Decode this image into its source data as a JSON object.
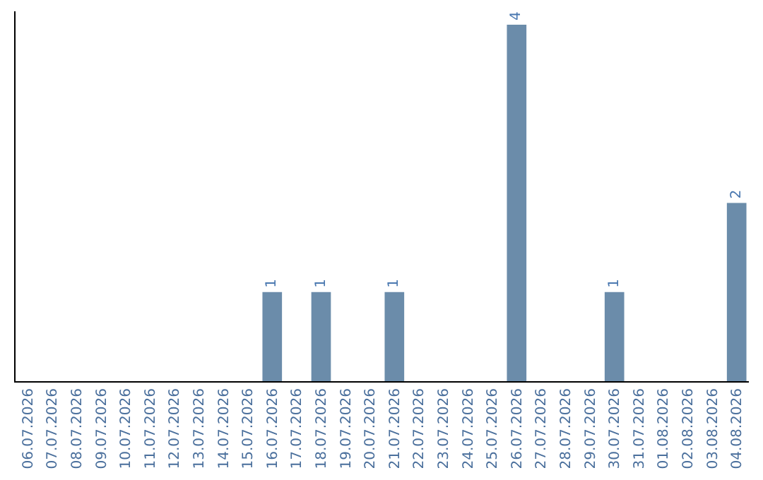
{
  "chart_data": {
    "type": "bar",
    "categories": [
      "06.07.2026",
      "07.07.2026",
      "08.07.2026",
      "09.07.2026",
      "10.07.2026",
      "11.07.2026",
      "12.07.2026",
      "13.07.2026",
      "14.07.2026",
      "15.07.2026",
      "16.07.2026",
      "17.07.2026",
      "18.07.2026",
      "19.07.2026",
      "20.07.2026",
      "21.07.2026",
      "22.07.2026",
      "23.07.2026",
      "24.07.2026",
      "25.07.2026",
      "26.07.2026",
      "27.07.2026",
      "28.07.2026",
      "29.07.2026",
      "30.07.2026",
      "31.07.2026",
      "01.08.2026",
      "02.08.2026",
      "03.08.2026",
      "04.08.2026"
    ],
    "values": [
      0,
      0,
      0,
      0,
      0,
      0,
      0,
      0,
      0,
      0,
      1,
      0,
      1,
      0,
      0,
      1,
      0,
      0,
      0,
      0,
      4,
      0,
      0,
      0,
      1,
      0,
      0,
      0,
      0,
      2
    ],
    "value_labels": [
      null,
      null,
      null,
      null,
      null,
      null,
      null,
      null,
      null,
      null,
      "1",
      null,
      "1",
      null,
      null,
      "1",
      null,
      null,
      null,
      null,
      "4",
      null,
      null,
      null,
      "1",
      null,
      null,
      null,
      null,
      "2"
    ],
    "color": "#6b8caa",
    "ylim": [
      0,
      4.15
    ],
    "tick_labels": "x"
  }
}
